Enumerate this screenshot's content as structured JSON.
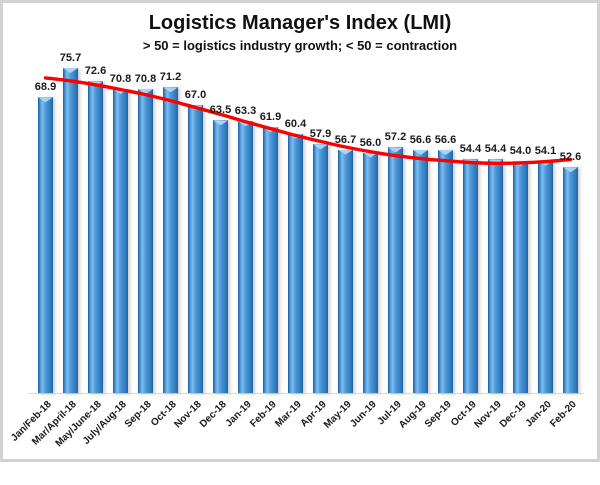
{
  "chart_data": {
    "type": "bar",
    "title": "Logistics Manager's Index (LMI)",
    "subtitle": "> 50 = logistics industry growth; < 50 = contraction",
    "categories": [
      "Jan/Feb-18",
      "Mar/April-18",
      "May/June-18",
      "July/Aug-18",
      "Sep-18",
      "Oct-18",
      "Nov-18",
      "Dec-18",
      "Jan-19",
      "Feb-19",
      "Mar-19",
      "Apr-19",
      "May-19",
      "Jun-19",
      "Jul-19",
      "Aug-19",
      "Sep-19",
      "Oct-19",
      "Nov-19",
      "Dec-19",
      "Jan-20",
      "Feb-20"
    ],
    "series": [
      {
        "name": "LMI",
        "type": "bar",
        "color": "#3f8ed2",
        "values": [
          68.9,
          75.7,
          72.6,
          70.8,
          70.8,
          71.2,
          67.0,
          63.5,
          63.3,
          61.9,
          60.4,
          57.9,
          56.7,
          56.0,
          57.2,
          56.6,
          56.6,
          54.4,
          54.4,
          54.0,
          54.1,
          52.6
        ]
      }
    ],
    "trendline": {
      "style": "smooth",
      "color": "#ff0000",
      "estimated_values": [
        73.4,
        72.7,
        71.8,
        70.7,
        69.5,
        68.1,
        66.5,
        64.9,
        63.2,
        61.6,
        60.0,
        58.6,
        57.3,
        56.2,
        55.3,
        54.6,
        54.1,
        53.7,
        53.5,
        53.6,
        53.9,
        54.4
      ]
    },
    "data_labels_shown": true,
    "x_tick_rotation_deg": 45,
    "ylim": [
      0,
      80
    ],
    "grid": false,
    "legend_position": "none",
    "colors": {
      "bar_fill": "#3f8ed2",
      "bar_cap": "#a9d5f4",
      "trend_line": "#ff0000",
      "axis_line": "#d9d9d9",
      "frame_border": "#d2d2d2",
      "background": "#ffffff",
      "text": "#111111"
    }
  }
}
